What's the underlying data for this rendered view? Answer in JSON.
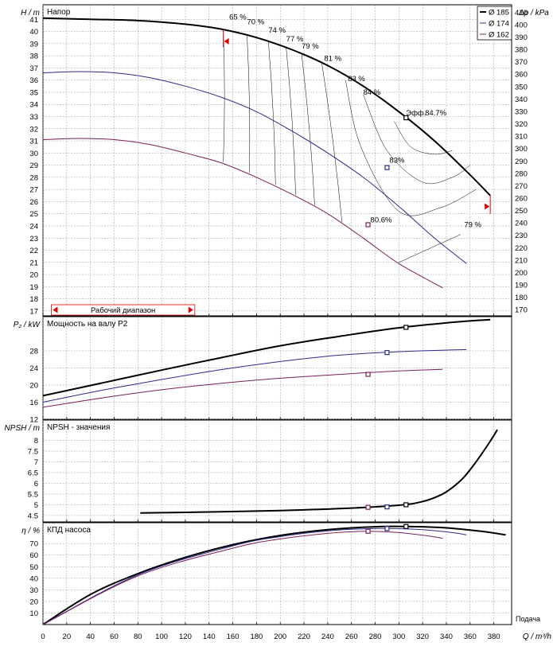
{
  "legend": [
    {
      "label": "Ø 185",
      "color": "#000000"
    },
    {
      "label": "Ø 174",
      "color": "#2b2b8c"
    },
    {
      "label": "Ø 162",
      "color": "#7a1f5a"
    }
  ],
  "x_axis": {
    "label": "Q / m³/h",
    "caption": "Подача",
    "ticks": [
      "0",
      "20",
      "40",
      "60",
      "80",
      "100",
      "120",
      "140",
      "160",
      "180",
      "200",
      "220",
      "240",
      "260",
      "280",
      "300",
      "320",
      "340",
      "360",
      "380"
    ]
  },
  "chart_data": [
    {
      "type": "line",
      "title": "Напор",
      "ylabel": "H / m",
      "ylabel_right": "Δp / kPa",
      "xlim": [
        0,
        395
      ],
      "ylim": [
        16.6,
        42.2
      ],
      "ylim_right": [
        165,
        416
      ],
      "y_ticks": [
        "17",
        "18",
        "19",
        "20",
        "21",
        "22",
        "23",
        "24",
        "25",
        "26",
        "27",
        "28",
        "29",
        "30",
        "31",
        "32",
        "33",
        "34",
        "35",
        "36",
        "37",
        "38",
        "39",
        "40",
        "41"
      ],
      "y_ticks_right": [
        "170",
        "180",
        "190",
        "200",
        "210",
        "220",
        "230",
        "240",
        "250",
        "260",
        "270",
        "280",
        "290",
        "300",
        "310",
        "320",
        "330",
        "340",
        "350",
        "360",
        "370",
        "380",
        "390",
        "400",
        "410"
      ],
      "series": [
        {
          "name": "Ø 185",
          "x": [
            0,
            40,
            80,
            120,
            150,
            180,
            210,
            240,
            270,
            300,
            330,
            360,
            377
          ],
          "y": [
            41.1,
            41.0,
            40.9,
            40.6,
            40.2,
            39.5,
            38.5,
            37.2,
            35.5,
            33.4,
            31.0,
            28.2,
            26.5
          ]
        },
        {
          "name": "Ø 174",
          "x": [
            0,
            30,
            60,
            90,
            120,
            150,
            180,
            210,
            240,
            270,
            300,
            330,
            357
          ],
          "y": [
            36.6,
            36.7,
            36.6,
            36.2,
            35.5,
            34.6,
            33.4,
            31.8,
            30.0,
            28.0,
            25.6,
            23.0,
            20.9
          ]
        },
        {
          "name": "Ø 162",
          "x": [
            0,
            30,
            60,
            90,
            120,
            150,
            180,
            210,
            240,
            270,
            300,
            337
          ],
          "y": [
            31.1,
            31.2,
            31.1,
            30.7,
            30.0,
            29.2,
            28.0,
            26.6,
            25.0,
            23.0,
            20.9,
            18.9
          ]
        }
      ],
      "efficiency_labels": [
        {
          "text": "65 %",
          "x": 157,
          "y": 41.0
        },
        {
          "text": "70 %",
          "x": 172,
          "y": 40.6
        },
        {
          "text": "74 %",
          "x": 190,
          "y": 39.9
        },
        {
          "text": "77 %",
          "x": 205,
          "y": 39.2
        },
        {
          "text": "79 %",
          "x": 218,
          "y": 38.6
        },
        {
          "text": "81 %",
          "x": 237,
          "y": 37.6
        },
        {
          "text": "83 %",
          "x": 257,
          "y": 35.9
        },
        {
          "text": "84 %",
          "x": 270,
          "y": 34.8
        },
        {
          "text": "Эфф.",
          "x": 306,
          "y": 33.1
        },
        {
          "text": "84.7%",
          "x": 322,
          "y": 33.1
        },
        {
          "text": "83%",
          "x": 292,
          "y": 29.2
        },
        {
          "text": "80.6%",
          "x": 276,
          "y": 24.3
        },
        {
          "text": "79 %",
          "x": 355,
          "y": 23.9
        }
      ],
      "markers": [
        {
          "x": 306,
          "y": 32.9,
          "color": "#000000"
        },
        {
          "x": 290,
          "y": 28.8,
          "color": "#2b2b8c"
        },
        {
          "x": 274,
          "y": 24.1,
          "color": "#7a1f5a"
        }
      ],
      "operating_range": {
        "label": "Рабочий диапазон",
        "x_min": 152,
        "x_max": 377
      }
    },
    {
      "type": "line",
      "title": "Мощность на валу P2",
      "ylabel": "P₂ / kW",
      "xlim": [
        0,
        395
      ],
      "ylim": [
        12,
        36
      ],
      "y_ticks": [
        "12",
        "16",
        "20",
        "24",
        "28"
      ],
      "series": [
        {
          "name": "Ø 185",
          "x": [
            0,
            50,
            100,
            150,
            200,
            250,
            300,
            350,
            377
          ],
          "y": [
            17.5,
            20.5,
            23.5,
            26.4,
            29.2,
            31.4,
            33.4,
            34.8,
            35.3
          ]
        },
        {
          "name": "Ø 174",
          "x": [
            0,
            50,
            100,
            150,
            200,
            250,
            300,
            357
          ],
          "y": [
            16.0,
            18.8,
            21.3,
            23.6,
            25.5,
            27.0,
            27.8,
            28.3
          ]
        },
        {
          "name": "Ø 162",
          "x": [
            0,
            50,
            100,
            150,
            200,
            250,
            300,
            337
          ],
          "y": [
            14.8,
            17.0,
            18.9,
            20.4,
            21.6,
            22.5,
            23.3,
            23.7
          ]
        }
      ],
      "markers": [
        {
          "x": 306,
          "y": 33.5,
          "color": "#000000"
        },
        {
          "x": 290,
          "y": 27.6,
          "color": "#2b2b8c"
        },
        {
          "x": 274,
          "y": 22.5,
          "color": "#7a1f5a"
        }
      ]
    },
    {
      "type": "line",
      "title": "NPSH - значения",
      "ylabel": "NPSH / m",
      "xlim": [
        0,
        395
      ],
      "ylim": [
        4.2,
        8.95
      ],
      "y_ticks": [
        "4.5",
        "5",
        "5.5",
        "6",
        "6.5",
        "7",
        "7.5",
        "8"
      ],
      "series": [
        {
          "name": "Ø 185",
          "x": [
            82,
            150,
            200,
            250,
            300,
            320,
            335,
            345,
            355,
            365,
            375,
            383
          ],
          "y": [
            4.62,
            4.67,
            4.73,
            4.82,
            4.98,
            5.15,
            5.45,
            5.8,
            6.3,
            7.0,
            7.8,
            8.5
          ]
        }
      ],
      "markers": [
        {
          "x": 306,
          "y": 5.0,
          "color": "#000000"
        },
        {
          "x": 290,
          "y": 4.9,
          "color": "#2b2b8c"
        },
        {
          "x": 274,
          "y": 4.88,
          "color": "#7a1f5a"
        }
      ]
    },
    {
      "type": "line",
      "title": "КПД насоса",
      "ylabel": "η / %",
      "xlim": [
        0,
        395
      ],
      "ylim": [
        0,
        88
      ],
      "y_ticks": [
        "10",
        "20",
        "30",
        "40",
        "50",
        "60",
        "70"
      ],
      "series": [
        {
          "name": "Ø 185",
          "x": [
            0,
            40,
            80,
            120,
            160,
            200,
            240,
            280,
            306,
            340,
            370,
            390
          ],
          "y": [
            0,
            26,
            44,
            58,
            69,
            77,
            82,
            84.5,
            84.7,
            83.5,
            80.5,
            77.5
          ]
        },
        {
          "name": "Ø 174",
          "x": [
            0,
            80,
            160,
            200,
            240,
            270,
            290,
            320,
            345,
            357
          ],
          "y": [
            0,
            43,
            68,
            76,
            81,
            82.7,
            83,
            82,
            79.5,
            77.5
          ]
        },
        {
          "name": "Ø 162",
          "x": [
            0,
            80,
            160,
            200,
            240,
            262,
            274,
            300,
            325,
            337
          ],
          "y": [
            0,
            42,
            66,
            74,
            78.8,
            80.3,
            80.6,
            79.5,
            76.5,
            74.5
          ]
        }
      ],
      "markers": [
        {
          "x": 306,
          "y": 84.7,
          "color": "#000000"
        },
        {
          "x": 290,
          "y": 83,
          "color": "#2b2b8c"
        },
        {
          "x": 274,
          "y": 80.6,
          "color": "#7a1f5a"
        }
      ]
    }
  ]
}
